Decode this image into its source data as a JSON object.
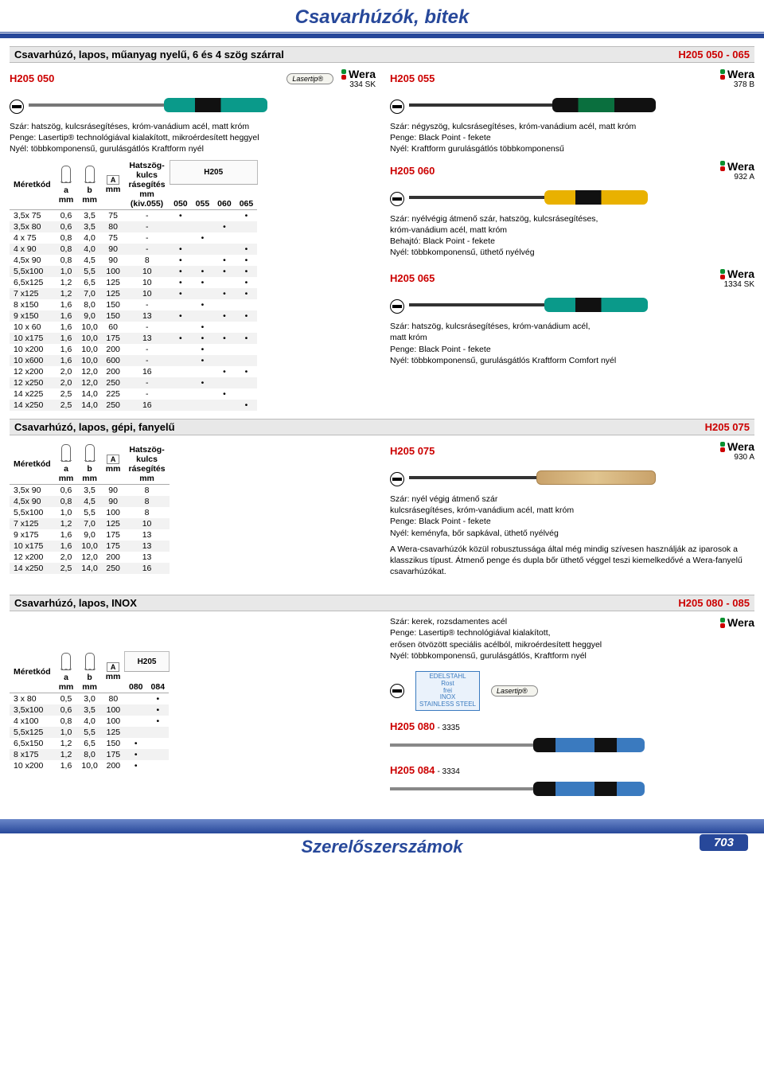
{
  "page": {
    "title": "Csavarhúzók, bitek",
    "footer_title": "Szerelőszerszámok",
    "page_number": "703"
  },
  "colors": {
    "brand_blue": "#27489a",
    "red": "#c00",
    "teal": "#0a9a8a",
    "green_dark": "#0a6f3e",
    "black": "#111",
    "yellow": "#e9b100",
    "blue_handle": "#3a7abf",
    "wood": "#c9a26a",
    "steel": "#7a7a7a"
  },
  "section1": {
    "title": "Csavarhúzó, lapos, műanyag nyelű, 6 és 4 szög szárral",
    "code": "H205 050 - 065",
    "left": {
      "code": "H205 050",
      "sku": "334 SK",
      "desc": "Szár: hatszög, kulcsrásegítéses, króm-vanádium acél, matt króm\nPenge: Lasertip® technológiával kialakított, mikroérdesített heggyel\nNyél: többkomponensű, gurulásgátlós Kraftform nyél"
    },
    "right_top": {
      "code": "H205 055",
      "sku": "378 B",
      "desc": "Szár: négyszög, kulcsrásegítéses, króm-vanádium acél, matt króm\nPenge: Black Point - fekete\nNyél: Kraftform gurulásgátlós többkomponensű"
    },
    "table": {
      "head": {
        "size": "Méretkód",
        "a": "a\nmm",
        "b": "b\nmm",
        "A": "A\nmm",
        "hex": "Hatszög-\nkulcs\nrásegítés\nmm\n(kiv.055)",
        "group": "H205",
        "cols": [
          "050",
          "055",
          "060",
          "065"
        ]
      },
      "rows": [
        [
          "3,5x  75",
          "0,6",
          "3,5",
          "75",
          "-",
          "•",
          "",
          "",
          "•"
        ],
        [
          "3,5x  80",
          "0,6",
          "3,5",
          "80",
          "-",
          "",
          "",
          "•",
          ""
        ],
        [
          "4   x  75",
          "0,8",
          "4,0",
          "75",
          "-",
          "",
          "•",
          "",
          ""
        ],
        [
          "4   x  90",
          "0,8",
          "4,0",
          "90",
          "-",
          "•",
          "",
          "",
          "•"
        ],
        [
          "4,5x  90",
          "0,8",
          "4,5",
          "90",
          "8",
          "•",
          "",
          "•",
          "•"
        ],
        [
          "5,5x100",
          "1,0",
          "5,5",
          "100",
          "10",
          "•",
          "•",
          "•",
          "•"
        ],
        [
          "6,5x125",
          "1,2",
          "6,5",
          "125",
          "10",
          "•",
          "•",
          "",
          "•"
        ],
        [
          "7   x125",
          "1,2",
          "7,0",
          "125",
          "10",
          "•",
          "",
          "•",
          "•"
        ],
        [
          "8   x150",
          "1,6",
          "8,0",
          "150",
          "-",
          "",
          "•",
          "",
          ""
        ],
        [
          "9   x150",
          "1,6",
          "9,0",
          "150",
          "13",
          "•",
          "",
          "•",
          "•"
        ],
        [
          "10 x  60",
          "1,6",
          "10,0",
          "60",
          "-",
          "",
          "•",
          "",
          ""
        ],
        [
          "10 x175",
          "1,6",
          "10,0",
          "175",
          "13",
          "•",
          "•",
          "•",
          "•"
        ],
        [
          "10 x200",
          "1,6",
          "10,0",
          "200",
          "-",
          "",
          "•",
          "",
          ""
        ],
        [
          "10 x600",
          "1,6",
          "10,0",
          "600",
          "-",
          "",
          "•",
          "",
          ""
        ],
        [
          "12 x200",
          "2,0",
          "12,0",
          "200",
          "16",
          "",
          "",
          "•",
          "•"
        ],
        [
          "12 x250",
          "2,0",
          "12,0",
          "250",
          "-",
          "",
          "•",
          "",
          ""
        ],
        [
          "14 x225",
          "2,5",
          "14,0",
          "225",
          "-",
          "",
          "",
          "•",
          ""
        ],
        [
          "14 x250",
          "2,5",
          "14,0",
          "250",
          "16",
          "",
          "",
          "",
          "•"
        ]
      ]
    },
    "right_products": [
      {
        "code": "H205 060",
        "sku": "932 A",
        "handle": [
          "#e9b100",
          "#111"
        ],
        "desc": "Szár: nyélvégig átmenő szár, hatszög, kulcsrásegítéses,\nkróm-vanádium acél, matt króm\nBehajtó: Black Point - fekete\nNyél: többkomponensű, üthető nyélvég"
      },
      {
        "code": "H205 065",
        "sku": "1334 SK",
        "handle": [
          "#0a9a8a",
          "#111"
        ],
        "desc": "Szár: hatszög, kulcsrásegítéses, króm-vanádium acél,\nmatt króm\nPenge: Black Point - fekete\nNyél: többkomponensű, gurulásgátlós Kraftform Comfort nyél"
      }
    ]
  },
  "section2": {
    "title": "Csavarhúzó, lapos, gépi, fanyelű",
    "code": "H205 075",
    "right": {
      "code": "H205 075",
      "sku": "930 A",
      "desc": "Szár: nyél végig átmenő szár\nkulcsrásegítéses, króm-vanádium acél, matt króm\nPenge: Black Point - fekete\nNyél: keményfa, bőr sapkával, üthető nyélvég",
      "note": "A Wera-csavarhúzók közül robusztussága által még mindig szívesen használják az iparosok a klasszikus típust. Átmenő penge és dupla bőr üthető véggel teszi kiemelkedővé a Wera-fanyelű csavarhúzókat."
    },
    "table": {
      "head": {
        "size": "Méretkód",
        "a": "a\nmm",
        "b": "b\nmm",
        "A": "A\nmm",
        "hex": "Hatszög-\nkulcs\nrásegítés\nmm"
      },
      "rows": [
        [
          "3,5x  90",
          "0,6",
          "3,5",
          "90",
          "8"
        ],
        [
          "4,5x  90",
          "0,8",
          "4,5",
          "90",
          "8"
        ],
        [
          "5,5x100",
          "1,0",
          "5,5",
          "100",
          "8"
        ],
        [
          "7   x125",
          "1,2",
          "7,0",
          "125",
          "10"
        ],
        [
          "9   x175",
          "1,6",
          "9,0",
          "175",
          "13"
        ],
        [
          "10 x175",
          "1,6",
          "10,0",
          "175",
          "13"
        ],
        [
          "12 x200",
          "2,0",
          "12,0",
          "200",
          "13"
        ],
        [
          "14 x250",
          "2,5",
          "14,0",
          "250",
          "16"
        ]
      ]
    }
  },
  "section3": {
    "title": "Csavarhúzó, lapos, INOX",
    "code": "H205 080 - 085",
    "right_desc": "Szár: kerek, rozsdamentes acél\nPenge: Lasertip® technológiával kialakított,\nerősen ötvözött speciális acélból, mikroérdesített heggyel\nNyél: többkomponensű, gurulásgátlós, Kraftform nyél",
    "rostfrei": "EDELSTAHL\nRost\nfrei\nINOX\nSTAINLESS STEEL",
    "lasertip": "Lasertip®",
    "products": [
      {
        "code": "H205 080",
        "sku": "- 3335",
        "handle": [
          "#3a7abf",
          "#111"
        ]
      },
      {
        "code": "H205 084",
        "sku": "- 3334",
        "handle": [
          "#3a7abf",
          "#111"
        ]
      }
    ],
    "table": {
      "head": {
        "size": "Méretkód",
        "a": "a\nmm",
        "b": "b\nmm",
        "A": "A\nmm",
        "group": "H205",
        "cols": [
          "080",
          "084"
        ]
      },
      "rows": [
        [
          "3   x  80",
          "0,5",
          "3,0",
          "80",
          "",
          "•"
        ],
        [
          "3,5x100",
          "0,6",
          "3,5",
          "100",
          "",
          "•"
        ],
        [
          "4   x100",
          "0,8",
          "4,0",
          "100",
          "",
          "•"
        ],
        [
          "5,5x125",
          "1,0",
          "5,5",
          "125",
          "",
          ""
        ],
        [
          "6,5x150",
          "1,2",
          "6,5",
          "150",
          "•",
          ""
        ],
        [
          "8   x175",
          "1,2",
          "8,0",
          "175",
          "•",
          ""
        ],
        [
          "10 x200",
          "1,6",
          "10,0",
          "200",
          "•",
          ""
        ]
      ]
    }
  }
}
